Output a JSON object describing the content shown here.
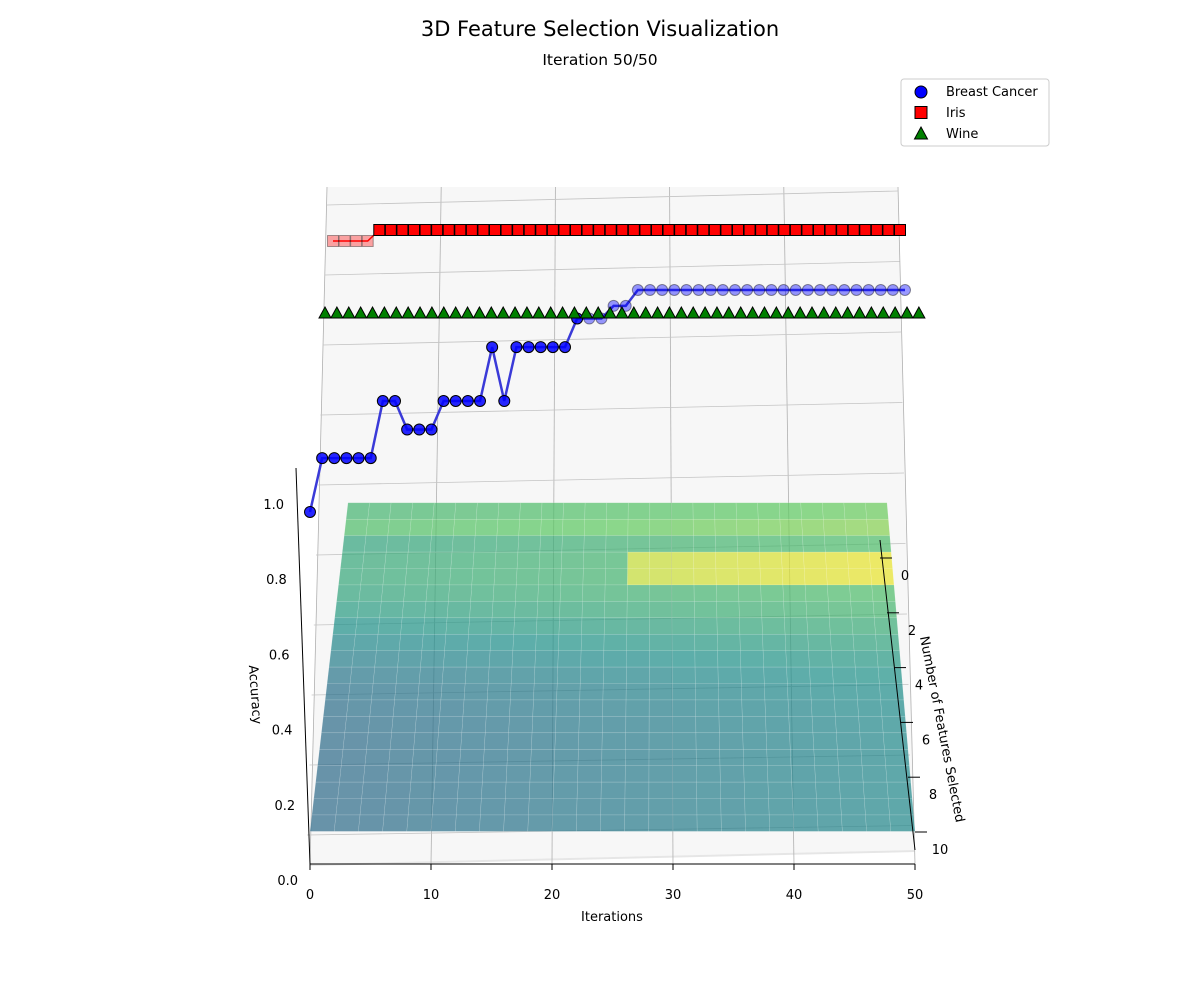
{
  "chart_data": {
    "type": "scatter",
    "title": "3D Feature Selection Visualization",
    "subtitle": "Iteration 50/50",
    "xlabel": "Iterations",
    "ylabel": "Number of Features Selected",
    "zlabel": "Accuracy",
    "xlim": [
      0,
      50
    ],
    "ylim": [
      0,
      10
    ],
    "zlim": [
      0,
      1
    ],
    "x_ticks": [
      "0",
      "10",
      "20",
      "30",
      "40",
      "50"
    ],
    "y_ticks": [
      "0",
      "2",
      "4",
      "6",
      "8",
      "10"
    ],
    "z_ticks": [
      "0.0",
      "0.2",
      "0.4",
      "0.6",
      "0.8",
      "1.0"
    ],
    "grid": true,
    "legend_position": "top-right",
    "surface_colormap": "viridis",
    "series": [
      {
        "name": "Breast Cancer",
        "marker": "circle",
        "color": "#0000ff",
        "x": [
          0,
          1,
          2,
          3,
          4,
          5,
          6,
          7,
          8,
          9,
          10,
          11,
          12,
          13,
          14,
          15,
          16,
          17,
          18,
          19,
          20,
          21,
          22,
          23,
          24,
          25,
          26,
          27,
          28,
          29,
          30,
          31,
          32,
          33,
          34,
          35,
          36,
          37,
          38,
          39,
          40,
          41,
          42,
          43,
          44,
          45,
          46,
          47,
          48,
          49
        ],
        "y": [
          10,
          10,
          10,
          10,
          10,
          10,
          10,
          10,
          10,
          10,
          10,
          10,
          10,
          10,
          10,
          10,
          10,
          10,
          10,
          10,
          10,
          10,
          10,
          10,
          10,
          10,
          10,
          10,
          10,
          10,
          10,
          10,
          10,
          10,
          10,
          10,
          10,
          10,
          10,
          10,
          10,
          10,
          10,
          10,
          10,
          10,
          10,
          10,
          10,
          10
        ],
        "z": [
          0.93,
          0.947,
          0.947,
          0.947,
          0.947,
          0.947,
          0.965,
          0.965,
          0.956,
          0.956,
          0.956,
          0.965,
          0.965,
          0.965,
          0.965,
          0.982,
          0.965,
          0.982,
          0.982,
          0.982,
          0.982,
          0.982,
          0.991,
          0.991,
          0.991,
          0.995,
          0.995,
          1.0,
          1.0,
          1.0,
          1.0,
          1.0,
          1.0,
          1.0,
          1.0,
          1.0,
          1.0,
          1.0,
          1.0,
          1.0,
          1.0,
          1.0,
          1.0,
          1.0,
          1.0,
          1.0,
          1.0,
          1.0,
          1.0,
          1.0
        ]
      },
      {
        "name": "Iris",
        "marker": "square",
        "color": "#ff0000",
        "x": [
          0,
          1,
          2,
          3,
          4,
          5,
          6,
          7,
          8,
          9,
          10,
          11,
          12,
          13,
          14,
          15,
          16,
          17,
          18,
          19,
          20,
          21,
          22,
          23,
          24,
          25,
          26,
          27,
          28,
          29,
          30,
          31,
          32,
          33,
          34,
          35,
          36,
          37,
          38,
          39,
          40,
          41,
          42,
          43,
          44,
          45,
          46,
          47,
          48,
          49
        ],
        "y": [
          2,
          2,
          2,
          2,
          2,
          2,
          2,
          2,
          2,
          2,
          2,
          2,
          2,
          2,
          2,
          2,
          2,
          2,
          2,
          2,
          2,
          2,
          2,
          2,
          2,
          2,
          2,
          2,
          2,
          2,
          2,
          2,
          2,
          2,
          2,
          2,
          2,
          2,
          2,
          2,
          2,
          2,
          2,
          2,
          2,
          2,
          2,
          2,
          2,
          2
        ],
        "z": [
          0.967,
          0.967,
          0.967,
          0.967,
          1.0,
          1.0,
          1.0,
          1.0,
          1.0,
          1.0,
          1.0,
          1.0,
          1.0,
          1.0,
          1.0,
          1.0,
          1.0,
          1.0,
          1.0,
          1.0,
          1.0,
          1.0,
          1.0,
          1.0,
          1.0,
          1.0,
          1.0,
          1.0,
          1.0,
          1.0,
          1.0,
          1.0,
          1.0,
          1.0,
          1.0,
          1.0,
          1.0,
          1.0,
          1.0,
          1.0,
          1.0,
          1.0,
          1.0,
          1.0,
          1.0,
          1.0,
          1.0,
          1.0,
          1.0,
          1.0
        ]
      },
      {
        "name": "Wine",
        "marker": "triangle",
        "color": "#008000",
        "x": [
          0,
          1,
          2,
          3,
          4,
          5,
          6,
          7,
          8,
          9,
          10,
          11,
          12,
          13,
          14,
          15,
          16,
          17,
          18,
          19,
          20,
          21,
          22,
          23,
          24,
          25,
          26,
          27,
          28,
          29,
          30,
          31,
          32,
          33,
          34,
          35,
          36,
          37,
          38,
          39,
          40,
          41,
          42,
          43,
          44,
          45,
          46,
          47,
          48,
          49,
          50
        ],
        "y": [
          0,
          0,
          0,
          0,
          0,
          0,
          0,
          0,
          0,
          0,
          0,
          0,
          0,
          0,
          0,
          0,
          0,
          0,
          0,
          0,
          0,
          0,
          0,
          0,
          0,
          0,
          0,
          0,
          0,
          0,
          0,
          0,
          0,
          0,
          0,
          0,
          0,
          0,
          0,
          0,
          0,
          0,
          0,
          0,
          0,
          0,
          0,
          0,
          0,
          0,
          0
        ],
        "z": [
          1.0,
          1.0,
          1.0,
          1.0,
          1.0,
          1.0,
          1.0,
          1.0,
          1.0,
          1.0,
          1.0,
          1.0,
          1.0,
          1.0,
          1.0,
          1.0,
          1.0,
          1.0,
          1.0,
          1.0,
          1.0,
          1.0,
          1.0,
          1.0,
          1.0,
          1.0,
          1.0,
          1.0,
          1.0,
          1.0,
          1.0,
          1.0,
          1.0,
          1.0,
          1.0,
          1.0,
          1.0,
          1.0,
          1.0,
          1.0,
          1.0,
          1.0,
          1.0,
          1.0,
          1.0,
          1.0,
          1.0,
          1.0,
          1.0,
          1.0,
          1.0
        ]
      }
    ]
  }
}
